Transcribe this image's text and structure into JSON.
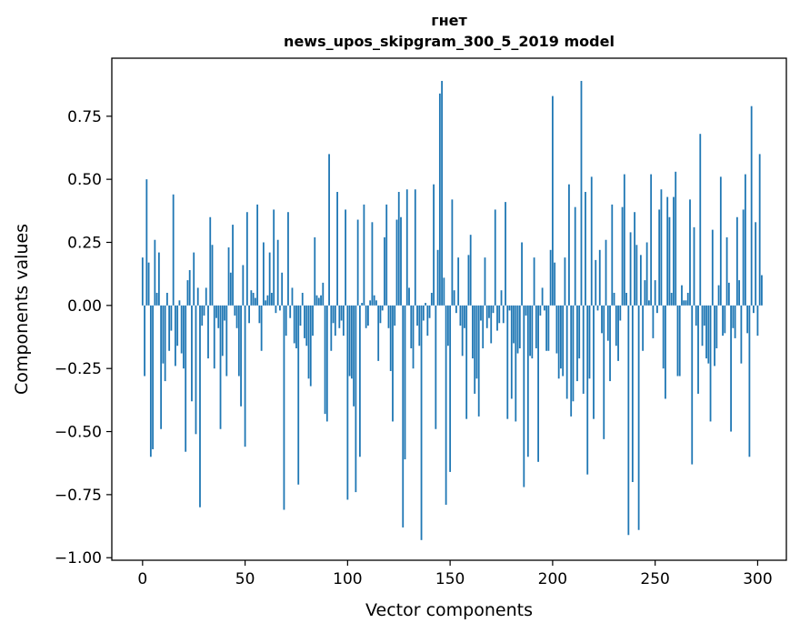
{
  "chart_data": {
    "type": "bar",
    "title_line1": "гнет",
    "title_line2": "news_upos_skipgram_300_5_2019 model",
    "xlabel": "Vector components",
    "ylabel": "Components values",
    "xlim": [
      -15,
      314
    ],
    "ylim": [
      -1.01,
      0.98
    ],
    "xticks": [
      0,
      50,
      100,
      150,
      200,
      250,
      300
    ],
    "xtick_labels": [
      "0",
      "50",
      "100",
      "150",
      "200",
      "250",
      "300"
    ],
    "yticks": [
      0.75,
      0.5,
      0.25,
      0.0,
      -0.25,
      -0.5,
      -0.75,
      -1.0
    ],
    "ytick_labels": [
      "0.75",
      "0.50",
      "0.25",
      "0.00",
      "−0.25",
      "−0.50",
      "−0.75",
      "−1.00"
    ],
    "bar_color": "#1f77b4",
    "values": [
      0.19,
      -0.28,
      0.5,
      0.17,
      -0.6,
      -0.57,
      0.26,
      0.05,
      0.21,
      -0.49,
      -0.23,
      -0.3,
      0.05,
      -0.18,
      -0.1,
      0.44,
      -0.24,
      -0.16,
      0.02,
      -0.19,
      -0.25,
      -0.58,
      0.1,
      0.14,
      -0.38,
      0.21,
      -0.51,
      0.07,
      -0.8,
      -0.08,
      -0.04,
      0.07,
      -0.21,
      0.35,
      0.24,
      -0.25,
      -0.05,
      -0.09,
      -0.49,
      -0.2,
      -0.06,
      -0.28,
      0.23,
      0.13,
      0.32,
      -0.04,
      -0.09,
      -0.28,
      -0.4,
      0.16,
      -0.56,
      0.37,
      -0.07,
      0.06,
      0.05,
      0.03,
      0.4,
      -0.07,
      -0.18,
      0.25,
      0.02,
      0.04,
      0.21,
      0.05,
      0.38,
      -0.03,
      0.26,
      -0.02,
      0.13,
      -0.81,
      -0.12,
      0.37,
      -0.05,
      0.07,
      -0.15,
      -0.17,
      -0.71,
      -0.08,
      0.05,
      -0.13,
      -0.16,
      -0.29,
      -0.32,
      -0.12,
      0.27,
      0.04,
      0.03,
      0.04,
      0.09,
      -0.43,
      -0.46,
      0.6,
      -0.18,
      -0.07,
      -0.12,
      0.45,
      -0.09,
      -0.06,
      -0.12,
      0.38,
      -0.77,
      -0.28,
      -0.29,
      -0.4,
      -0.74,
      0.34,
      -0.6,
      0.01,
      0.4,
      -0.09,
      -0.08,
      0.02,
      0.33,
      0.04,
      0.02,
      -0.22,
      -0.07,
      -0.02,
      0.27,
      0.4,
      -0.09,
      -0.26,
      -0.46,
      -0.08,
      0.34,
      0.45,
      0.35,
      -0.88,
      -0.61,
      0.46,
      0.07,
      -0.17,
      -0.25,
      0.46,
      -0.08,
      -0.16,
      -0.93,
      -0.06,
      0.01,
      -0.12,
      -0.05,
      0.05,
      0.48,
      -0.49,
      0.22,
      0.84,
      0.89,
      0.11,
      -0.79,
      -0.16,
      -0.66,
      0.42,
      0.06,
      -0.03,
      0.19,
      -0.08,
      -0.2,
      -0.09,
      -0.45,
      0.2,
      0.28,
      -0.21,
      -0.35,
      -0.29,
      -0.44,
      -0.06,
      -0.17,
      0.19,
      -0.09,
      -0.05,
      -0.15,
      -0.03,
      0.38,
      -0.1,
      -0.07,
      0.06,
      -0.07,
      0.41,
      -0.45,
      -0.02,
      -0.37,
      -0.15,
      -0.46,
      -0.19,
      -0.17,
      0.25,
      -0.72,
      -0.04,
      -0.6,
      -0.2,
      -0.21,
      0.19,
      -0.17,
      -0.62,
      -0.04,
      0.07,
      -0.02,
      -0.18,
      -0.18,
      0.22,
      0.83,
      0.17,
      -0.19,
      -0.29,
      -0.25,
      -0.28,
      0.19,
      -0.37,
      0.48,
      -0.44,
      -0.38,
      0.39,
      -0.3,
      -0.21,
      0.89,
      -0.35,
      0.45,
      -0.67,
      -0.29,
      0.51,
      -0.45,
      0.18,
      -0.02,
      0.22,
      -0.11,
      -0.53,
      0.26,
      -0.14,
      -0.3,
      0.4,
      0.05,
      -0.16,
      -0.22,
      -0.06,
      0.39,
      0.52,
      0.05,
      -0.91,
      0.29,
      -0.7,
      0.37,
      0.24,
      -0.89,
      0.2,
      -0.18,
      0.1,
      0.25,
      0.02,
      0.52,
      -0.13,
      0.1,
      -0.03,
      0.38,
      0.46,
      -0.25,
      -0.37,
      0.43,
      0.35,
      0.05,
      0.43,
      0.53,
      -0.28,
      -0.28,
      0.08,
      0.02,
      0.02,
      0.05,
      0.42,
      -0.63,
      0.31,
      -0.08,
      -0.35,
      0.68,
      -0.16,
      -0.08,
      -0.21,
      -0.23,
      -0.46,
      0.3,
      -0.24,
      -0.17,
      0.08,
      0.51,
      -0.12,
      -0.11,
      0.27,
      0.09,
      -0.5,
      -0.09,
      -0.13,
      0.35,
      0.1,
      -0.23,
      0.38,
      0.52,
      -0.11,
      -0.6,
      0.79,
      -0.03,
      0.33,
      -0.12,
      0.6,
      0.12
    ]
  }
}
